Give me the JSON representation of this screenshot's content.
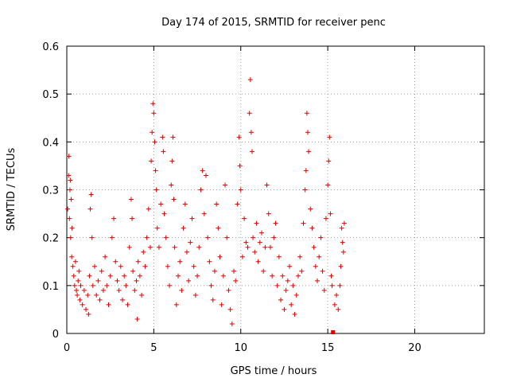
{
  "chart_data": {
    "type": "scatter",
    "title": "Day 174 of 2015, SRMTID for receiver penc",
    "xlabel": "GPS time / hours",
    "ylabel": "SRMTID / TECUs",
    "xlim": [
      0,
      24
    ],
    "ylim": [
      0,
      0.6
    ],
    "xticks": [
      "0",
      "5",
      "10",
      "15",
      "20"
    ],
    "xtick_values": [
      0,
      5,
      10,
      15,
      20
    ],
    "yticks": [
      "0",
      "0.1",
      "0.2",
      "0.3",
      "0.4",
      "0.5",
      "0.6"
    ],
    "ytick_values": [
      0,
      0.1,
      0.2,
      0.3,
      0.4,
      0.5,
      0.6
    ],
    "grid": true,
    "marker": "plus",
    "series": [
      {
        "color": "#e00000",
        "points": [
          [
            0.05,
            0.26
          ],
          [
            0.1,
            0.33
          ],
          [
            0.12,
            0.37
          ],
          [
            0.15,
            0.24
          ],
          [
            0.18,
            0.3
          ],
          [
            0.2,
            0.32
          ],
          [
            0.22,
            0.2
          ],
          [
            0.25,
            0.28
          ],
          [
            0.28,
            0.16
          ],
          [
            0.3,
            0.22
          ],
          [
            0.35,
            0.14
          ],
          [
            0.4,
            0.12
          ],
          [
            0.45,
            0.1
          ],
          [
            0.5,
            0.15
          ],
          [
            0.55,
            0.09
          ],
          [
            0.6,
            0.08
          ],
          [
            0.65,
            0.11
          ],
          [
            0.7,
            0.13
          ],
          [
            0.75,
            0.07
          ],
          [
            0.8,
            0.1
          ],
          [
            0.9,
            0.06
          ],
          [
            1.0,
            0.09
          ],
          [
            1.1,
            0.05
          ],
          [
            1.2,
            0.08
          ],
          [
            1.25,
            0.04
          ],
          [
            1.3,
            0.12
          ],
          [
            1.35,
            0.26
          ],
          [
            1.4,
            0.29
          ],
          [
            1.45,
            0.2
          ],
          [
            1.5,
            0.1
          ],
          [
            1.6,
            0.14
          ],
          [
            1.7,
            0.08
          ],
          [
            1.8,
            0.11
          ],
          [
            1.9,
            0.07
          ],
          [
            2.0,
            0.13
          ],
          [
            2.1,
            0.09
          ],
          [
            2.2,
            0.16
          ],
          [
            2.3,
            0.1
          ],
          [
            2.4,
            0.06
          ],
          [
            2.5,
            0.12
          ],
          [
            2.6,
            0.2
          ],
          [
            2.7,
            0.24
          ],
          [
            2.8,
            0.15
          ],
          [
            2.9,
            0.11
          ],
          [
            3.0,
            0.09
          ],
          [
            3.1,
            0.14
          ],
          [
            3.2,
            0.07
          ],
          [
            3.3,
            0.12
          ],
          [
            3.4,
            0.1
          ],
          [
            3.5,
            0.06
          ],
          [
            3.6,
            0.18
          ],
          [
            3.7,
            0.28
          ],
          [
            3.75,
            0.24
          ],
          [
            3.8,
            0.13
          ],
          [
            3.9,
            0.09
          ],
          [
            4.0,
            0.11
          ],
          [
            4.05,
            0.03
          ],
          [
            4.1,
            0.15
          ],
          [
            4.2,
            0.12
          ],
          [
            4.3,
            0.08
          ],
          [
            4.4,
            0.17
          ],
          [
            4.5,
            0.14
          ],
          [
            4.6,
            0.2
          ],
          [
            4.7,
            0.26
          ],
          [
            4.8,
            0.18
          ],
          [
            4.85,
            0.36
          ],
          [
            4.9,
            0.42
          ],
          [
            4.95,
            0.48
          ],
          [
            5.0,
            0.46
          ],
          [
            5.05,
            0.4
          ],
          [
            5.1,
            0.34
          ],
          [
            5.15,
            0.3
          ],
          [
            5.2,
            0.22
          ],
          [
            5.3,
            0.18
          ],
          [
            5.4,
            0.27
          ],
          [
            5.5,
            0.41
          ],
          [
            5.55,
            0.38
          ],
          [
            5.6,
            0.25
          ],
          [
            5.7,
            0.2
          ],
          [
            5.8,
            0.14
          ],
          [
            5.9,
            0.1
          ],
          [
            6.0,
            0.31
          ],
          [
            6.05,
            0.36
          ],
          [
            6.1,
            0.41
          ],
          [
            6.15,
            0.28
          ],
          [
            6.2,
            0.18
          ],
          [
            6.3,
            0.06
          ],
          [
            6.4,
            0.12
          ],
          [
            6.5,
            0.15
          ],
          [
            6.6,
            0.09
          ],
          [
            6.7,
            0.22
          ],
          [
            6.8,
            0.27
          ],
          [
            6.9,
            0.17
          ],
          [
            7.0,
            0.11
          ],
          [
            7.1,
            0.19
          ],
          [
            7.2,
            0.24
          ],
          [
            7.3,
            0.14
          ],
          [
            7.4,
            0.08
          ],
          [
            7.5,
            0.12
          ],
          [
            7.6,
            0.18
          ],
          [
            7.7,
            0.3
          ],
          [
            7.8,
            0.34
          ],
          [
            7.9,
            0.25
          ],
          [
            8.0,
            0.33
          ],
          [
            8.1,
            0.2
          ],
          [
            8.2,
            0.15
          ],
          [
            8.3,
            0.1
          ],
          [
            8.4,
            0.07
          ],
          [
            8.5,
            0.13
          ],
          [
            8.6,
            0.27
          ],
          [
            8.7,
            0.22
          ],
          [
            8.8,
            0.16
          ],
          [
            8.9,
            0.06
          ],
          [
            9.0,
            0.12
          ],
          [
            9.1,
            0.31
          ],
          [
            9.2,
            0.2
          ],
          [
            9.3,
            0.09
          ],
          [
            9.4,
            0.05
          ],
          [
            9.5,
            0.02
          ],
          [
            9.6,
            0.13
          ],
          [
            9.7,
            0.11
          ],
          [
            9.8,
            0.27
          ],
          [
            9.9,
            0.41
          ],
          [
            9.95,
            0.35
          ],
          [
            10.0,
            0.3
          ],
          [
            10.1,
            0.16
          ],
          [
            10.2,
            0.24
          ],
          [
            10.3,
            0.19
          ],
          [
            10.4,
            0.18
          ],
          [
            10.5,
            0.46
          ],
          [
            10.55,
            0.53
          ],
          [
            10.6,
            0.42
          ],
          [
            10.65,
            0.38
          ],
          [
            10.7,
            0.2
          ],
          [
            10.8,
            0.17
          ],
          [
            10.9,
            0.23
          ],
          [
            11.0,
            0.15
          ],
          [
            11.1,
            0.19
          ],
          [
            11.2,
            0.21
          ],
          [
            11.3,
            0.13
          ],
          [
            11.4,
            0.18
          ],
          [
            11.5,
            0.31
          ],
          [
            11.6,
            0.25
          ],
          [
            11.7,
            0.18
          ],
          [
            11.8,
            0.12
          ],
          [
            11.9,
            0.2
          ],
          [
            12.0,
            0.23
          ],
          [
            12.1,
            0.1
          ],
          [
            12.2,
            0.16
          ],
          [
            12.3,
            0.07
          ],
          [
            12.4,
            0.12
          ],
          [
            12.5,
            0.05
          ],
          [
            12.6,
            0.09
          ],
          [
            12.7,
            0.11
          ],
          [
            12.8,
            0.14
          ],
          [
            12.9,
            0.06
          ],
          [
            13.0,
            0.1
          ],
          [
            13.1,
            0.04
          ],
          [
            13.2,
            0.08
          ],
          [
            13.3,
            0.12
          ],
          [
            13.4,
            0.16
          ],
          [
            13.5,
            0.13
          ],
          [
            13.6,
            0.23
          ],
          [
            13.7,
            0.3
          ],
          [
            13.75,
            0.34
          ],
          [
            13.8,
            0.46
          ],
          [
            13.85,
            0.42
          ],
          [
            13.9,
            0.38
          ],
          [
            14.0,
            0.26
          ],
          [
            14.1,
            0.22
          ],
          [
            14.2,
            0.18
          ],
          [
            14.3,
            0.14
          ],
          [
            14.4,
            0.11
          ],
          [
            14.5,
            0.16
          ],
          [
            14.6,
            0.2
          ],
          [
            14.7,
            0.13
          ],
          [
            14.8,
            0.09
          ],
          [
            14.9,
            0.24
          ],
          [
            15.0,
            0.31
          ],
          [
            15.05,
            0.36
          ],
          [
            15.1,
            0.41
          ],
          [
            15.15,
            0.25
          ],
          [
            15.2,
            0.12
          ],
          [
            15.25,
            0.1
          ],
          [
            15.4,
            0.06
          ],
          [
            15.5,
            0.08
          ],
          [
            15.6,
            0.05
          ],
          [
            15.7,
            0.1
          ],
          [
            15.75,
            0.14
          ],
          [
            15.8,
            0.22
          ],
          [
            15.85,
            0.19
          ],
          [
            15.9,
            0.17
          ],
          [
            15.95,
            0.23
          ]
        ]
      }
    ],
    "annotation_marker": {
      "x": 15.3,
      "y": 0,
      "shape": "square"
    }
  }
}
